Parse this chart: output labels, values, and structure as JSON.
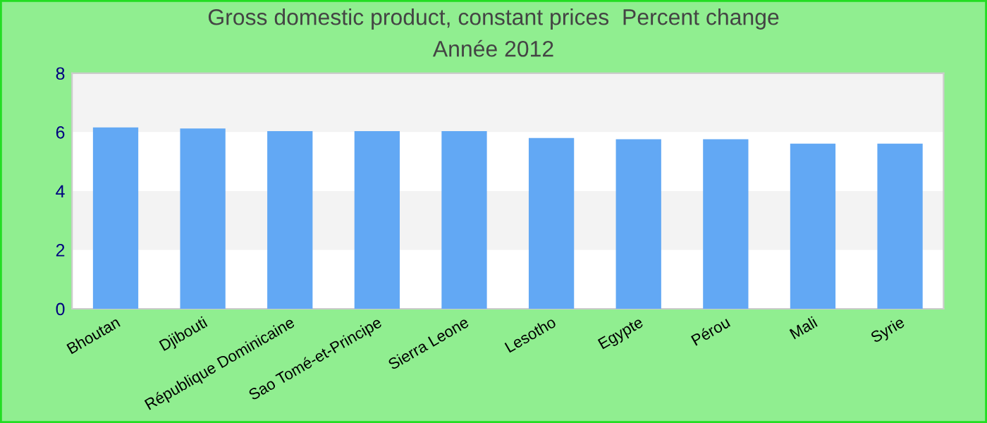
{
  "chart_data": {
    "type": "bar",
    "title": "Gross domestic product, constant prices  Percent change",
    "subtitle": "Année 2012",
    "categories": [
      "Bhoutan",
      "Djibouti",
      "République Dominicaine",
      "Sao Tomé-et-Principe",
      "Sierra Leone",
      "Lesotho",
      "Egypte",
      "Pérou",
      "Mali",
      "Syrie"
    ],
    "values": [
      6.16,
      6.12,
      6.03,
      6.03,
      6.03,
      5.8,
      5.76,
      5.76,
      5.61,
      5.61
    ],
    "color": "#62a8f4",
    "ylim": [
      0,
      8
    ],
    "yticks": [
      0,
      2,
      4,
      6,
      8
    ],
    "bands": [
      {
        "axis": "y",
        "from": 2,
        "to": 4,
        "color": "#f3f3f3"
      },
      {
        "axis": "y",
        "from": 6,
        "to": 8,
        "color": "#f3f3f3"
      }
    ],
    "grid": false,
    "legend": false
  }
}
